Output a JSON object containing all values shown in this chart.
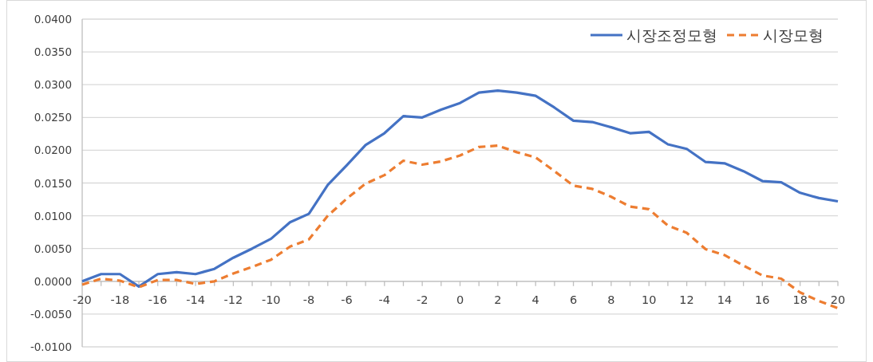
{
  "chart_data": {
    "type": "line",
    "x": [
      -20,
      -19,
      -18,
      -17,
      -16,
      -15,
      -14,
      -13,
      -12,
      -11,
      -10,
      -9,
      -8,
      -7,
      -6,
      -5,
      -4,
      -3,
      -2,
      -1,
      0,
      1,
      2,
      3,
      4,
      5,
      6,
      7,
      8,
      9,
      10,
      11,
      12,
      13,
      14,
      15,
      16,
      17,
      18,
      19,
      20
    ],
    "series": [
      {
        "name": "시장조정모형",
        "color": "#4472c4",
        "line_style": "solid",
        "values": [
          0.0,
          0.0011,
          0.0011,
          -0.0008,
          0.0011,
          0.0014,
          0.0011,
          0.0019,
          0.0036,
          0.005,
          0.0065,
          0.009,
          0.0103,
          0.0147,
          0.0177,
          0.0208,
          0.0226,
          0.0252,
          0.025,
          0.0262,
          0.0272,
          0.0288,
          0.0291,
          0.0288,
          0.0283,
          0.0265,
          0.0245,
          0.0243,
          0.0235,
          0.0226,
          0.0228,
          0.0209,
          0.0202,
          0.0182,
          0.018,
          0.0168,
          0.0153,
          0.0151,
          0.0135,
          0.0127,
          0.0122
        ]
      },
      {
        "name": "시장모형",
        "color": "#ed7d31",
        "line_style": "dashed",
        "values": [
          -0.0005,
          0.0004,
          0.0001,
          -0.0009,
          0.0002,
          0.0002,
          -0.0004,
          0.0,
          0.0012,
          0.0022,
          0.0033,
          0.0053,
          0.0064,
          0.01,
          0.0126,
          0.0149,
          0.0162,
          0.0184,
          0.0178,
          0.0183,
          0.0192,
          0.0205,
          0.0207,
          0.0197,
          0.0189,
          0.0168,
          0.0146,
          0.0141,
          0.0129,
          0.0114,
          0.011,
          0.0085,
          0.0074,
          0.0049,
          0.004,
          0.0024,
          0.0009,
          0.0004,
          -0.0017,
          -0.003,
          -0.0041
        ]
      }
    ],
    "xlim": [
      -20,
      20
    ],
    "ylim": [
      -0.01,
      0.04
    ],
    "xticks": [
      -20,
      {
        "value": -19,
        "label": null
      },
      -18,
      {
        "value": -17,
        "label": null
      },
      -16,
      {
        "value": -15,
        "label": null
      },
      -14,
      {
        "value": -13,
        "label": null
      },
      -12,
      {
        "value": -11,
        "label": null
      },
      -10,
      {
        "value": -9,
        "label": null
      },
      -8,
      {
        "value": -7,
        "label": null
      },
      -6,
      {
        "value": -5,
        "label": null
      },
      -4,
      {
        "value": -3,
        "label": null
      },
      -2,
      {
        "value": -1,
        "label": null
      },
      0,
      {
        "value": 1,
        "label": null
      },
      2,
      {
        "value": 3,
        "label": null
      },
      4,
      {
        "value": 5,
        "label": null
      },
      6,
      {
        "value": 7,
        "label": null
      },
      8,
      {
        "value": 9,
        "label": null
      },
      10,
      {
        "value": 11,
        "label": null
      },
      12,
      {
        "value": 13,
        "label": null
      },
      14,
      {
        "value": 15,
        "label": null
      },
      16,
      {
        "value": 17,
        "label": null
      },
      18,
      {
        "value": 19,
        "label": null
      },
      20
    ],
    "yticks": [
      {
        "value": -0.01,
        "label": "-0.0100"
      },
      {
        "value": -0.005,
        "label": "-0.0050"
      },
      {
        "value": 0,
        "label": "0.0000"
      },
      {
        "value": 0.005,
        "label": "0.0050"
      },
      {
        "value": 0.01,
        "label": "0.0100"
      },
      {
        "value": 0.015,
        "label": "0.0150"
      },
      {
        "value": 0.02,
        "label": "0.0200"
      },
      {
        "value": 0.025,
        "label": "0.0250"
      },
      {
        "value": 0.03,
        "label": "0.0300"
      },
      {
        "value": 0.035,
        "label": "0.0350"
      },
      {
        "value": 0.04,
        "label": "0.0400"
      }
    ],
    "grid": "y",
    "legend": "top right"
  }
}
